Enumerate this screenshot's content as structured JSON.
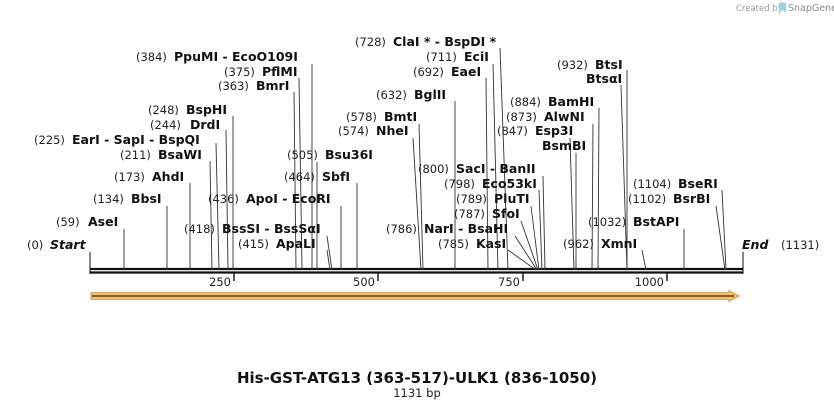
{
  "credit": {
    "prefix": "Created by",
    "brand": "SnapGene"
  },
  "map": {
    "title": "His-GST-ATG13 (363-517)-ULK1 (836-1050)",
    "length_label": "1131 bp",
    "length": 1131,
    "start": {
      "label": "Start",
      "pos": "(0)"
    },
    "end": {
      "label": "End",
      "pos": "(1131)"
    },
    "ticks": [
      "250",
      "500",
      "750",
      "1000"
    ],
    "feature_color": "#f5c06a"
  },
  "sites": [
    {
      "id": "asei",
      "pos": "(59)",
      "name": "AseI"
    },
    {
      "id": "bbsi",
      "pos": "(134)",
      "name": "BbsI"
    },
    {
      "id": "ahdi",
      "pos": "(173)",
      "name": "AhdI"
    },
    {
      "id": "bsawi",
      "pos": "(211)",
      "name": "BsaWI"
    },
    {
      "id": "eari",
      "pos": "(225)",
      "name": "EarI - SapI - BspQI"
    },
    {
      "id": "drdi",
      "pos": "(244)",
      "name": "DrdI"
    },
    {
      "id": "bsphi",
      "pos": "(248)",
      "name": "BspHI"
    },
    {
      "id": "bmri",
      "pos": "(363)",
      "name": "BmrI"
    },
    {
      "id": "pflmi",
      "pos": "(375)",
      "name": "PflMI"
    },
    {
      "id": "ppumi",
      "pos": "(384)",
      "name": "PpuMI - EcoO109I"
    },
    {
      "id": "apali",
      "pos": "(415)",
      "name": "ApaLI"
    },
    {
      "id": "bsssi",
      "pos": "(418)",
      "name": "BssSI - BssSαI"
    },
    {
      "id": "apoi",
      "pos": "(436)",
      "name": "ApoI - EcoRI"
    },
    {
      "id": "sbfi",
      "pos": "(464)",
      "name": "SbfI"
    },
    {
      "id": "bsu36i",
      "pos": "(505)",
      "name": "Bsu36I"
    },
    {
      "id": "ahei",
      "pos": "(574)",
      "name": "NheI"
    },
    {
      "id": "bmti",
      "pos": "(578)",
      "name": "BmtI"
    },
    {
      "id": "bglii",
      "pos": "(632)",
      "name": "BglII"
    },
    {
      "id": "eaei",
      "pos": "(692)",
      "name": "EaeI"
    },
    {
      "id": "ecii",
      "pos": "(711)",
      "name": "EciI"
    },
    {
      "id": "clai",
      "pos": "(728)",
      "name": "ClaI * - BspDI *"
    },
    {
      "id": "kasi",
      "pos": "(785)",
      "name": "KasI"
    },
    {
      "id": "nari",
      "pos": "(786)",
      "name": "NarI - BsaHI"
    },
    {
      "id": "sfoi",
      "pos": "(787)",
      "name": "SfoI"
    },
    {
      "id": "pluti",
      "pos": "(789)",
      "name": "PluTI"
    },
    {
      "id": "eco53ki",
      "pos": "(798)",
      "name": "Eco53kI"
    },
    {
      "id": "saci",
      "pos": "(800)",
      "name": "SacI - BanII"
    },
    {
      "id": "bsmbi",
      "pos": "",
      "name": "BsmBI"
    },
    {
      "id": "esp3i",
      "pos": "(847)",
      "name": "Esp3I"
    },
    {
      "id": "alwni",
      "pos": "(873)",
      "name": "AlwNI"
    },
    {
      "id": "bamhi",
      "pos": "(884)",
      "name": "BamHI"
    },
    {
      "id": "btsai",
      "pos": "",
      "name": "BtsαI"
    },
    {
      "id": "btsi",
      "pos": "(932)",
      "name": "BtsI"
    },
    {
      "id": "xmni",
      "pos": "(962)",
      "name": "XmnI"
    },
    {
      "id": "bstapi",
      "pos": "(1032)",
      "name": "BstAPI"
    },
    {
      "id": "bsrbi",
      "pos": "(1102)",
      "name": "BsrBI"
    },
    {
      "id": "bseri",
      "pos": "(1104)",
      "name": "BseRI"
    }
  ]
}
